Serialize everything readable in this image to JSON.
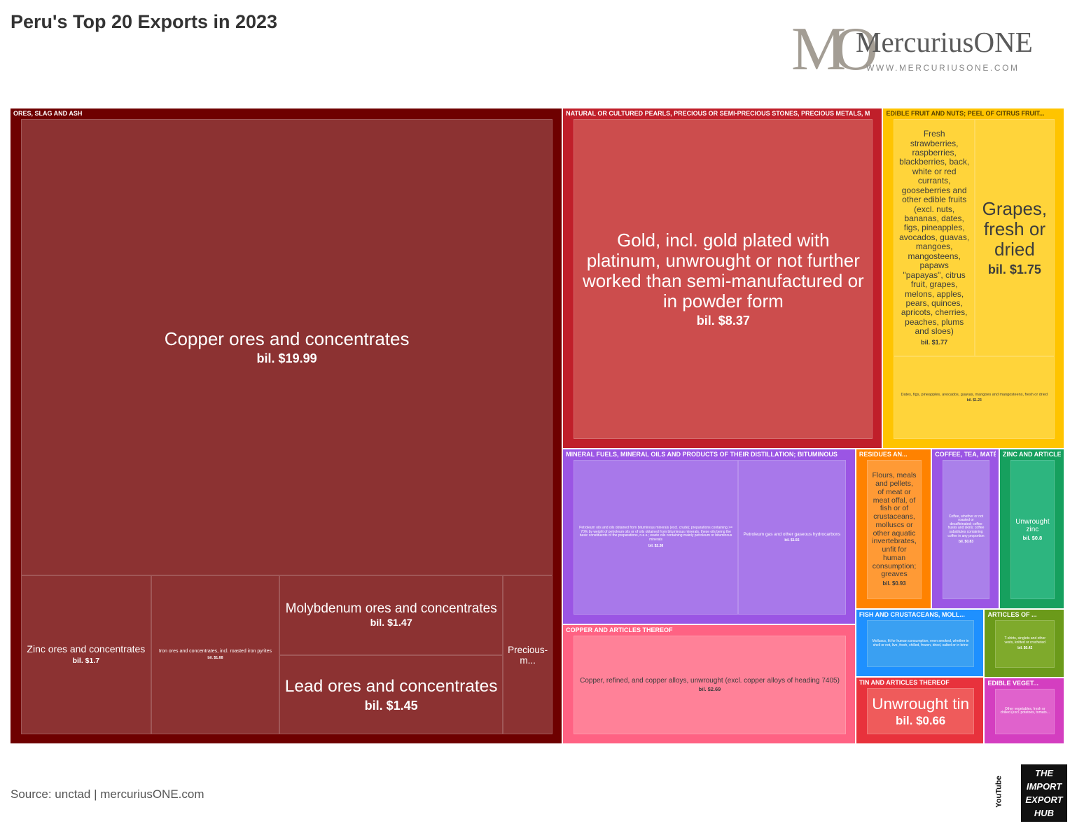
{
  "chart_data": {
    "type": "treemap",
    "title": "Peru's Top 20 Exports in 2023",
    "source": "Source: unctad | mercuriusONE.com",
    "groups": [
      {
        "name": "ORES, SLAG AND ASH",
        "color": "#6e0000",
        "leaf_color": "#8c3232",
        "labels": [
          "Copper ores and concentrates",
          "Zinc ores and concentrates",
          "Iron ores and concentrates, incl. roasted iron pyrites",
          "Molybdenum ores and concentrates",
          "Lead ores and concentrates",
          "Precious-m..."
        ],
        "values": [
          19.99,
          1.7,
          1.68,
          1.47,
          1.45,
          0.65
        ],
        "value_labels": [
          "bil. $19.99",
          "bil. $1.7",
          "bil. $1.68",
          "bil. $1.47",
          "bil. $1.45",
          null
        ]
      },
      {
        "name": "NATURAL OR CULTURED PEARLS, PRECIOUS OR SEMI-PRECIOUS STONES, PRECIOUS METALS, M",
        "color": "#c01f2a",
        "leaf_color": "#cc4d4d",
        "labels": [
          "Gold, incl. gold plated with platinum, unwrought or not further worked than semi-manufactured or in powder form"
        ],
        "values": [
          8.37
        ],
        "value_labels": [
          "bil. $8.37"
        ]
      },
      {
        "name": "EDIBLE FRUIT AND NUTS; PEEL OF CITRUS FRUIT...",
        "color": "#ffc400",
        "leaf_color": "#ffd43a",
        "labels": [
          "Fresh strawberries, raspberries, blackberries, back, white or red currants, gooseberries and other edible fruits (excl. nuts, bananas, dates, figs, pineapples, avocados, guavas, mangoes, mangosteens, papaws \"papayas\", citrus fruit, grapes, melons, apples, pears, quinces, apricots, cherries, peaches, plums and sloes)",
          "Grapes, fresh or dried",
          "Dates, figs, pineapples, avocados, guavas, mangoes and mangosteens, fresh or dried"
        ],
        "values": [
          1.77,
          1.75,
          1.23
        ],
        "value_labels": [
          "bil. $1.77",
          "bil. $1.75",
          "bil. $1.23"
        ]
      },
      {
        "name": "MINERAL FUELS, MINERAL OILS AND PRODUCTS OF THEIR DISTILLATION; BITUMINOUS",
        "color": "#9b55e4",
        "leaf_color": "#a878ea",
        "labels": [
          "Petroleum oils and oils obtained from bituminous minerals (excl. crude); preparations containing >= 70% by weight of petroleum oils or of oils obtained from bituminous minerals, these oils being the basic constituents of the preparations, n.e.s.; waste oils containing mainly petroleum or bituminous minerals",
          "Petroleum gas and other gaseous hydrocarbons"
        ],
        "values": [
          2.38,
          1.56
        ],
        "value_labels": [
          "bil. $2.38",
          "bil. $1.56"
        ]
      },
      {
        "name": "COPPER AND ARTICLES THEREOF",
        "color": "#ff6283",
        "leaf_color": "#ff8198",
        "labels": [
          "Copper, refined, and copper alloys, unwrought (excl. copper alloys of heading 7405)"
        ],
        "values": [
          2.69
        ],
        "value_labels": [
          "bil. $2.69"
        ]
      },
      {
        "name": "RESIDUES AN...",
        "color": "#ff8200",
        "leaf_color": "#ff9a35",
        "labels": [
          "Flours, meals and pellets, of meat or meat offal, of fish or of crustaceans, molluscs or other aquatic invertebrates, unfit for human consumption; greaves"
        ],
        "values": [
          0.93
        ],
        "value_labels": [
          "bil. $0.93"
        ]
      },
      {
        "name": "COFFEE, TEA, MATÉ AND SPICES",
        "color": "#9b55e4",
        "leaf_color": "#aa80ea",
        "labels": [
          "Coffee, whether or not roasted or decaffeinated; coffee husks and skins; coffee substitutes containing coffee in any proportion"
        ],
        "values": [
          0.83
        ],
        "value_labels": [
          "bil. $0.83"
        ]
      },
      {
        "name": "ZINC AND ARTICLES THEREOF",
        "color": "#16a05e",
        "leaf_color": "#2db57f",
        "labels": [
          "Unwrought zinc"
        ],
        "values": [
          0.8
        ],
        "value_labels": [
          "bil. $0.8"
        ]
      },
      {
        "name": "FISH AND CRUSTACEANS, MOLL...",
        "color": "#1e90ff",
        "leaf_color": "#3aa0f2",
        "labels": [
          "Molluscs, fit for human consumption, even smoked, whether in shell or not, live, fresh, chilled, frozen, dried, salted or in brine"
        ],
        "values": [
          0.67
        ],
        "value_labels": [
          null
        ]
      },
      {
        "name": "TIN AND ARTICLES THEREOF",
        "color": "#e8323c",
        "leaf_color": "#ef5b5b",
        "labels": [
          "Unwrought tin"
        ],
        "values": [
          0.66
        ],
        "value_labels": [
          "bil. $0.66"
        ]
      },
      {
        "name": "ARTICLES OF ...",
        "color": "#6b9a1a",
        "leaf_color": "#7faa2c",
        "labels": [
          "T-shirts, singlets and other vests, knitted or crocheted"
        ],
        "values": [
          0.42
        ],
        "value_labels": [
          "bil. $0.42"
        ]
      },
      {
        "name": "EDIBLE VEGET...",
        "color": "#d43ec0",
        "leaf_color": "#e062cc",
        "labels": [
          "Other vegetables, fresh or chilled (excl. potatoes, tomato..."
        ],
        "values": [
          0.41
        ],
        "value_labels": [
          null
        ]
      }
    ]
  },
  "branding": {
    "monogram": "MO",
    "name": "MercuriusONE",
    "url": "WWW.MERCURIUSONE.COM",
    "hub_lines": [
      "THE",
      "IMPORT",
      "EXPORT",
      "HUB"
    ],
    "hub_side": "YouTube"
  }
}
